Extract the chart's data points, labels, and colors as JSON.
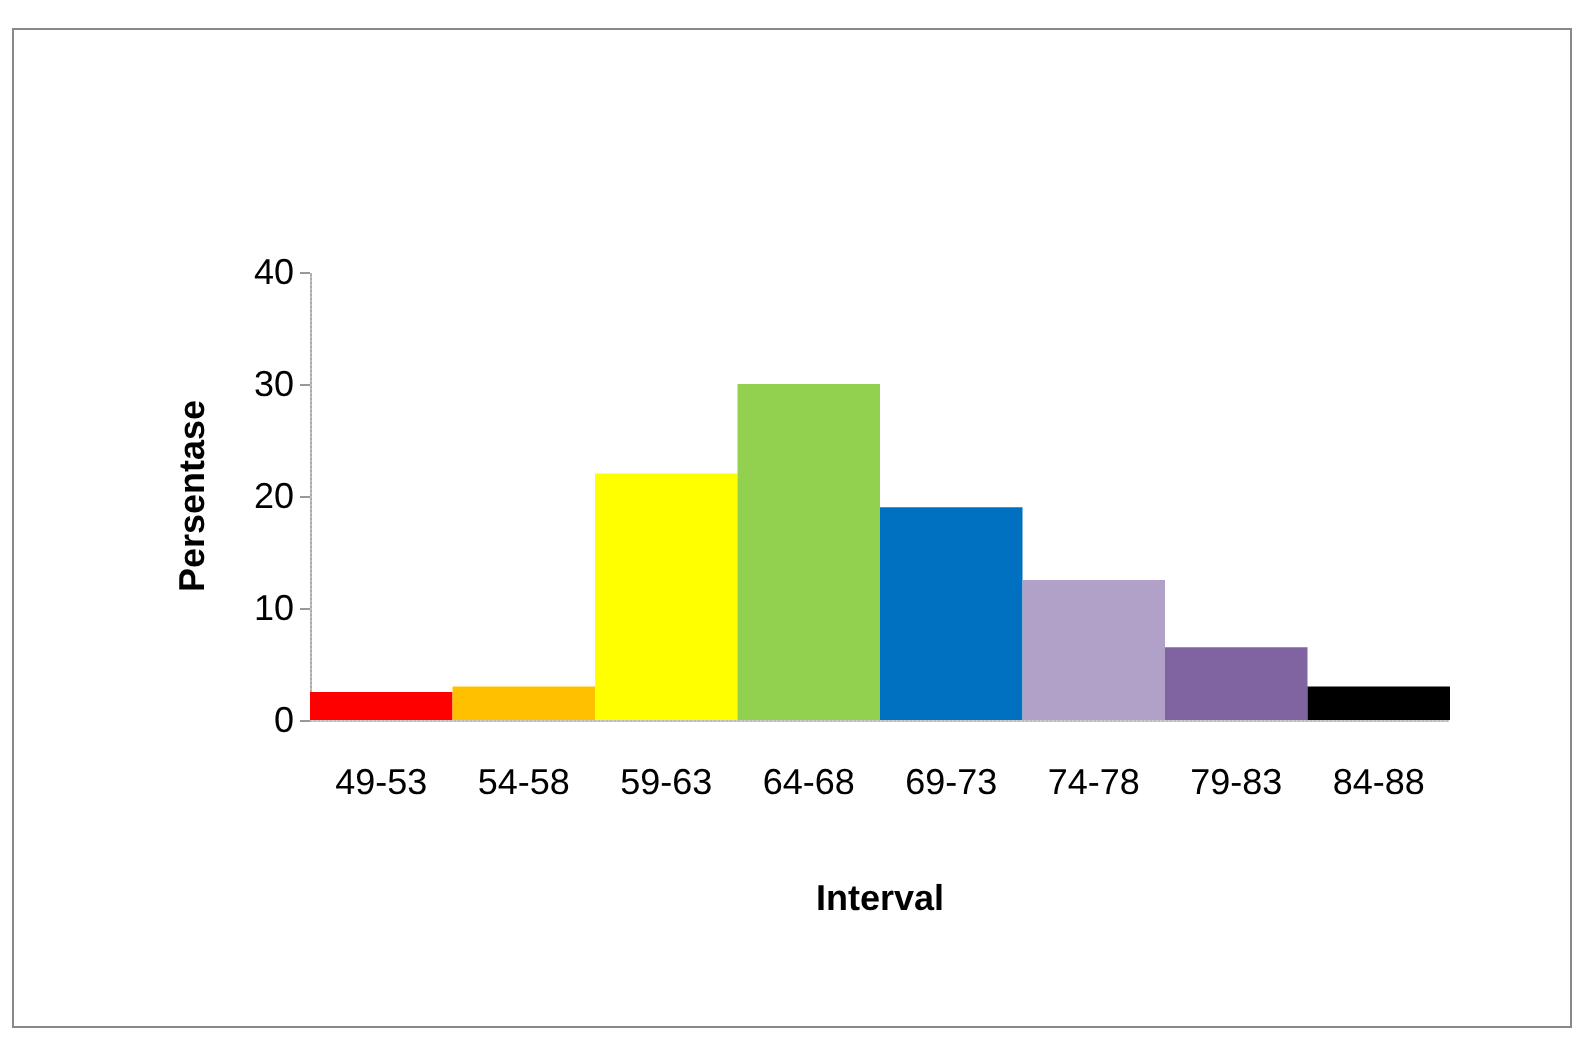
{
  "chart_data": {
    "type": "bar",
    "xlabel": "Interval",
    "ylabel": "Persentase",
    "categories": [
      "49-53",
      "54-58",
      "59-63",
      "64-68",
      "69-73",
      "74-78",
      "79-83",
      "84-88"
    ],
    "values": [
      2.5,
      3,
      22,
      30,
      19,
      12.5,
      6.5,
      3
    ],
    "colors": [
      "#ff0000",
      "#ffc000",
      "#ffff00",
      "#92d050",
      "#0070c0",
      "#b1a0c7",
      "#8064a2",
      "#000000"
    ],
    "ylim": [
      0,
      40
    ],
    "yticks": [
      0,
      10,
      20,
      30,
      40
    ],
    "grid": false
  }
}
